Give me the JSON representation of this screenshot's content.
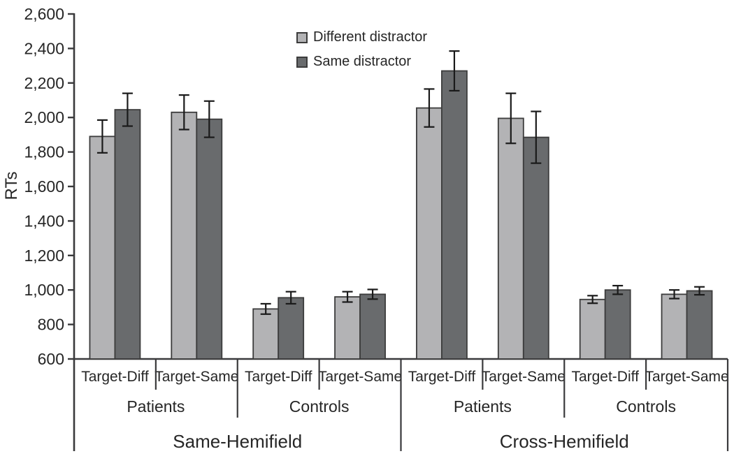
{
  "figure": {
    "colors": {
      "light_bar": "#b3b3b5",
      "dark_bar": "#696b6d",
      "bar_border": "#3c3c3c",
      "axis": "#3a3a3c",
      "error_bar": "#1a1a1a",
      "text": "#262626",
      "background": "#ffffff"
    }
  },
  "chart_data": {
    "type": "bar",
    "title": "",
    "xlabel": "",
    "ylabel": "RTs",
    "ylim": [
      600,
      2600
    ],
    "ytick_values": [
      600,
      800,
      1000,
      1200,
      1400,
      1600,
      1800,
      2000,
      2200,
      2400,
      2600
    ],
    "ytick_labels": [
      "600",
      "800",
      "1,000",
      "1,200",
      "1,400",
      "1,600",
      "1,800",
      "2,000",
      "2,200",
      "2,400",
      "2,600"
    ],
    "grid": false,
    "legend_position": "top-center-inside",
    "series": [
      {
        "name": "Different distractor",
        "color": "#b3b3b5"
      },
      {
        "name": "Same distractor",
        "color": "#696b6d"
      }
    ],
    "hemifields": [
      {
        "label": "Same-Hemifield",
        "populations": [
          {
            "label": "Patients",
            "conditions": [
              {
                "label": "Target-Diff",
                "values": [
                  1890,
                  2045
                ],
                "errors": [
                  95,
                  95
                ]
              },
              {
                "label": "Target-Same",
                "values": [
                  2030,
                  1990
                ],
                "errors": [
                  100,
                  105
                ]
              }
            ]
          },
          {
            "label": "Controls",
            "conditions": [
              {
                "label": "Target-Diff",
                "values": [
                  890,
                  955
                ],
                "errors": [
                  30,
                  35
                ]
              },
              {
                "label": "Target-Same",
                "values": [
                  960,
                  975
                ],
                "errors": [
                  30,
                  28
                ]
              }
            ]
          }
        ]
      },
      {
        "label": "Cross-Hemifield",
        "populations": [
          {
            "label": "Patients",
            "conditions": [
              {
                "label": "Target-Diff",
                "values": [
                  2055,
                  2270
                ],
                "errors": [
                  110,
                  115
                ]
              },
              {
                "label": "Target-Same",
                "values": [
                  1995,
                  1885
                ],
                "errors": [
                  145,
                  150
                ]
              }
            ]
          },
          {
            "label": "Controls",
            "conditions": [
              {
                "label": "Target-Diff",
                "values": [
                  945,
                  1000
                ],
                "errors": [
                  22,
                  25
                ]
              },
              {
                "label": "Target-Same",
                "values": [
                  975,
                  995
                ],
                "errors": [
                  25,
                  23
                ]
              }
            ]
          }
        ]
      }
    ]
  }
}
